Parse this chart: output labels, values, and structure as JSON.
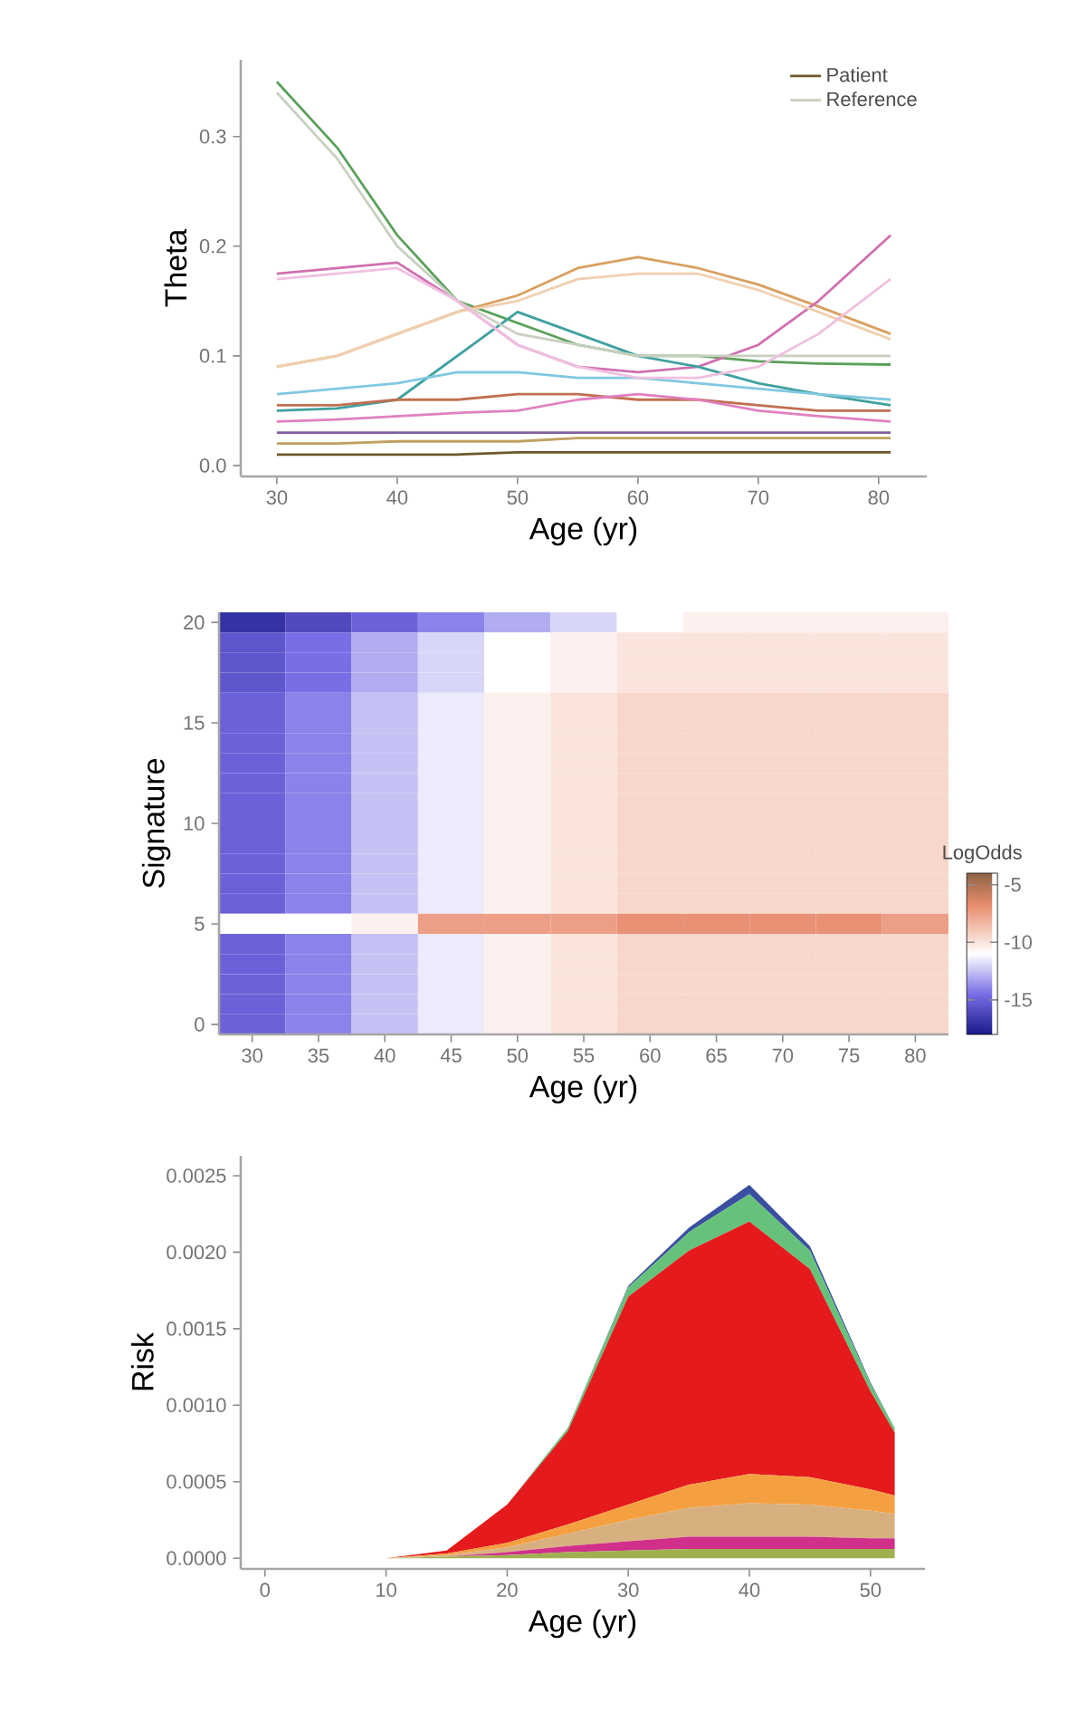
{
  "chart_data": [
    {
      "type": "line",
      "xlabel": "Age (yr)",
      "ylabel": "Theta",
      "x": [
        30,
        35,
        40,
        45,
        50,
        55,
        60,
        65,
        70,
        75,
        81
      ],
      "xlim": [
        27,
        84
      ],
      "ylim": [
        -0.01,
        0.37
      ],
      "xticks": [
        30,
        40,
        50,
        60,
        70,
        80
      ],
      "yticks": [
        {
          "value": 0,
          "label": "0.0"
        },
        0.1,
        0.2,
        0.3
      ],
      "legend": "top right",
      "series": [
        {
          "name": "Patient",
          "color": "#6b5a2a",
          "values": [
            0.01,
            0.01,
            0.01,
            0.01,
            0.012,
            0.012,
            0.012,
            0.012,
            0.012,
            0.012,
            0.012
          ]
        },
        {
          "color": "#5aa05a",
          "values": [
            0.35,
            0.29,
            0.21,
            0.15,
            0.13,
            0.11,
            0.1,
            0.1,
            0.095,
            0.093,
            0.092
          ]
        },
        {
          "color": "#d9a060",
          "values": [
            0.09,
            0.1,
            0.12,
            0.14,
            0.155,
            0.18,
            0.19,
            0.18,
            0.165,
            0.145,
            0.12
          ]
        },
        {
          "color": "#d070b0",
          "values": [
            0.175,
            0.18,
            0.185,
            0.15,
            0.11,
            0.09,
            0.085,
            0.09,
            0.11,
            0.15,
            0.21
          ]
        },
        {
          "color": "#40a0a0",
          "values": [
            0.05,
            0.052,
            0.06,
            0.1,
            0.14,
            0.12,
            0.1,
            0.09,
            0.075,
            0.065,
            0.055
          ]
        },
        {
          "color": "#80c8e0",
          "values": [
            0.065,
            0.07,
            0.075,
            0.085,
            0.085,
            0.08,
            0.08,
            0.075,
            0.07,
            0.065,
            0.06
          ]
        },
        {
          "color": "#c07050",
          "values": [
            0.055,
            0.055,
            0.06,
            0.06,
            0.065,
            0.065,
            0.06,
            0.06,
            0.055,
            0.05,
            0.05
          ]
        },
        {
          "color": "#e080c0",
          "values": [
            0.04,
            0.042,
            0.045,
            0.048,
            0.05,
            0.06,
            0.065,
            0.06,
            0.05,
            0.045,
            0.04
          ]
        },
        {
          "color": "#8060a0",
          "values": [
            0.03,
            0.03,
            0.03,
            0.03,
            0.03,
            0.03,
            0.03,
            0.03,
            0.03,
            0.03,
            0.03
          ]
        },
        {
          "color": "#c0a060",
          "values": [
            0.02,
            0.02,
            0.022,
            0.022,
            0.022,
            0.025,
            0.025,
            0.025,
            0.025,
            0.025,
            0.025
          ]
        },
        {
          "name": "Reference",
          "color": "#c8d0c0",
          "values": [
            0.34,
            0.28,
            0.2,
            0.15,
            0.12,
            0.11,
            0.1,
            0.1,
            0.1,
            0.1,
            0.1
          ]
        },
        {
          "color": "#f0d0b0",
          "values": [
            0.09,
            0.1,
            0.12,
            0.14,
            0.15,
            0.17,
            0.175,
            0.175,
            0.16,
            0.14,
            0.115
          ]
        },
        {
          "color": "#f0c0e0",
          "values": [
            0.17,
            0.175,
            0.18,
            0.15,
            0.11,
            0.09,
            0.08,
            0.08,
            0.09,
            0.12,
            0.17
          ]
        }
      ]
    },
    {
      "type": "heatmap",
      "xlabel": "Age (yr)",
      "ylabel": "Signature",
      "clabel": "LogOdds",
      "clim": [
        -18,
        -4
      ],
      "cticks": [
        -15,
        -10,
        -5
      ],
      "categories": [
        "30",
        "35",
        "40",
        "45",
        "50",
        "55",
        "60",
        "65",
        "70",
        "75",
        "80"
      ],
      "y_categories": [
        "20",
        null,
        null,
        null,
        null,
        "15",
        null,
        null,
        null,
        null,
        "10",
        null,
        null,
        null,
        null,
        "5",
        null,
        null,
        null,
        null,
        "0"
      ],
      "cells": [
        [
          -17,
          -16,
          -15,
          -14,
          -13,
          -12,
          -11,
          -10.5,
          -10.5,
          -10.5,
          -10.5
        ],
        [
          -15.5,
          -14.5,
          -13,
          -12,
          -11,
          -10.5,
          -10,
          -10,
          -10,
          -10,
          -10
        ],
        [
          -15.5,
          -14.5,
          -13,
          -12,
          -11,
          -10.5,
          -10,
          -10,
          -10,
          -10,
          -10
        ],
        [
          -15.5,
          -14.5,
          -13,
          -12,
          -11,
          -10.5,
          -10,
          -10,
          -10,
          -10,
          -10
        ],
        [
          -15,
          -14,
          -12.5,
          -11.5,
          -10.5,
          -10,
          -9.5,
          -9.5,
          -9.5,
          -9.5,
          -9.5
        ],
        [
          -15,
          -14,
          -12.5,
          -11.5,
          -10.5,
          -10,
          -9.5,
          -9.5,
          -9.5,
          -9.5,
          -9.5
        ],
        [
          -15,
          -14,
          -12.5,
          -11.5,
          -10.5,
          -10,
          -9.5,
          -9.5,
          -9.5,
          -9.5,
          -9.5
        ],
        [
          -15,
          -14,
          -12.5,
          -11.5,
          -10.5,
          -10,
          -9.5,
          -9.5,
          -9.5,
          -9.5,
          -9.5
        ],
        [
          -15,
          -14,
          -12.5,
          -11.5,
          -10.5,
          -10,
          -9.5,
          -9.5,
          -9.5,
          -9.5,
          -9.5
        ],
        [
          -15,
          -14,
          -12.5,
          -11.5,
          -10.5,
          -10,
          -9.5,
          -9.5,
          -9.5,
          -9.5,
          -9.5
        ],
        [
          -15,
          -14,
          -12.5,
          -11.5,
          -10.5,
          -10,
          -9.5,
          -9.5,
          -9.5,
          -9.5,
          -9.5
        ],
        [
          -15,
          -14,
          -12.5,
          -11.5,
          -10.5,
          -10,
          -9.5,
          -9.5,
          -9.5,
          -9.5,
          -9.5
        ],
        [
          -15,
          -14,
          -12.5,
          -11.5,
          -10.5,
          -10,
          -9.5,
          -9.5,
          -9.5,
          -9.5,
          -9.5
        ],
        [
          -15,
          -14,
          -12.5,
          -11.5,
          -10.5,
          -10,
          -9.5,
          -9.5,
          -9.5,
          -9.5,
          -9.5
        ],
        [
          -15,
          -14,
          -12.5,
          -11.5,
          -10.5,
          -10,
          -9.5,
          -9.5,
          -9.5,
          -9.5,
          -9.5
        ],
        [
          -11,
          -11,
          -10.5,
          -7.5,
          -7.5,
          -7.5,
          -7,
          -7,
          -7,
          -7,
          -7.5
        ],
        [
          -15,
          -14,
          -12.5,
          -11.5,
          -10.5,
          -10,
          -9.5,
          -9.5,
          -9.5,
          -9.5,
          -9.5
        ],
        [
          -15,
          -14,
          -12.5,
          -11.5,
          -10.5,
          -10,
          -9.5,
          -9.5,
          -9.5,
          -9.5,
          -9.5
        ],
        [
          -15,
          -14,
          -12.5,
          -11.5,
          -10.5,
          -10,
          -9.5,
          -9.5,
          -9.5,
          -9.5,
          -9.5
        ],
        [
          -15,
          -14,
          -12.5,
          -11.5,
          -10.5,
          -10,
          -9.5,
          -9.5,
          -9.5,
          -9.5,
          -9.5
        ],
        [
          -15,
          -14,
          -12.5,
          -11.5,
          -10.5,
          -10,
          -9.5,
          -9.5,
          -9.5,
          -9.5,
          -9.5
        ]
      ]
    },
    {
      "type": "area",
      "stacked": true,
      "xlabel": "Age (yr)",
      "ylabel": "Risk",
      "x": [
        10,
        15,
        20,
        25,
        30,
        35,
        40,
        45,
        50,
        52
      ],
      "xlim": [
        -2,
        54.5
      ],
      "ylim": [
        -7e-05,
        0.00263
      ],
      "xticks": [
        0,
        10,
        20,
        30,
        40,
        50
      ],
      "yticks": [
        {
          "value": 0,
          "label": "0.0000"
        },
        {
          "value": 0.0005,
          "label": "0.0005"
        },
        {
          "value": 0.001,
          "label": "0.0010"
        },
        {
          "value": 0.0015,
          "label": "0.0015"
        },
        {
          "value": 0.002,
          "label": "0.0020"
        },
        {
          "value": 0.0025,
          "label": "0.0025"
        }
      ],
      "series": [
        {
          "color": "#a0b050",
          "values": [
            0,
            1e-05,
            2e-05,
            4e-05,
            5e-05,
            6e-05,
            6e-05,
            6e-05,
            6e-05,
            6e-05
          ]
        },
        {
          "color": "#d0308a",
          "values": [
            0,
            0,
            2e-05,
            4e-05,
            6e-05,
            8e-05,
            8e-05,
            8e-05,
            7e-05,
            7e-05
          ]
        },
        {
          "color": "#d8b080",
          "values": [
            0,
            1e-05,
            3e-05,
            8e-05,
            0.00014,
            0.00019,
            0.00022,
            0.00021,
            0.00018,
            0.00016
          ]
        },
        {
          "color": "#f5a040",
          "values": [
            0,
            1e-05,
            3e-05,
            6e-05,
            0.0001,
            0.00015,
            0.00019,
            0.00018,
            0.00014,
            0.00012
          ]
        },
        {
          "color": "#e41a1c",
          "values": [
            0,
            2e-05,
            0.00025,
            0.00061,
            0.00136,
            0.00153,
            0.00165,
            0.00136,
            0.00064,
            0.00041
          ]
        },
        {
          "color": "#66c27a",
          "values": [
            0,
            0,
            0,
            2e-05,
            6e-05,
            0.00012,
            0.00018,
            0.00012,
            5e-05,
            3e-05
          ]
        },
        {
          "color": "#3a4fa0",
          "values": [
            0,
            0,
            0,
            0,
            1e-05,
            3e-05,
            6e-05,
            3e-05,
            1e-05,
            0
          ]
        }
      ]
    }
  ]
}
